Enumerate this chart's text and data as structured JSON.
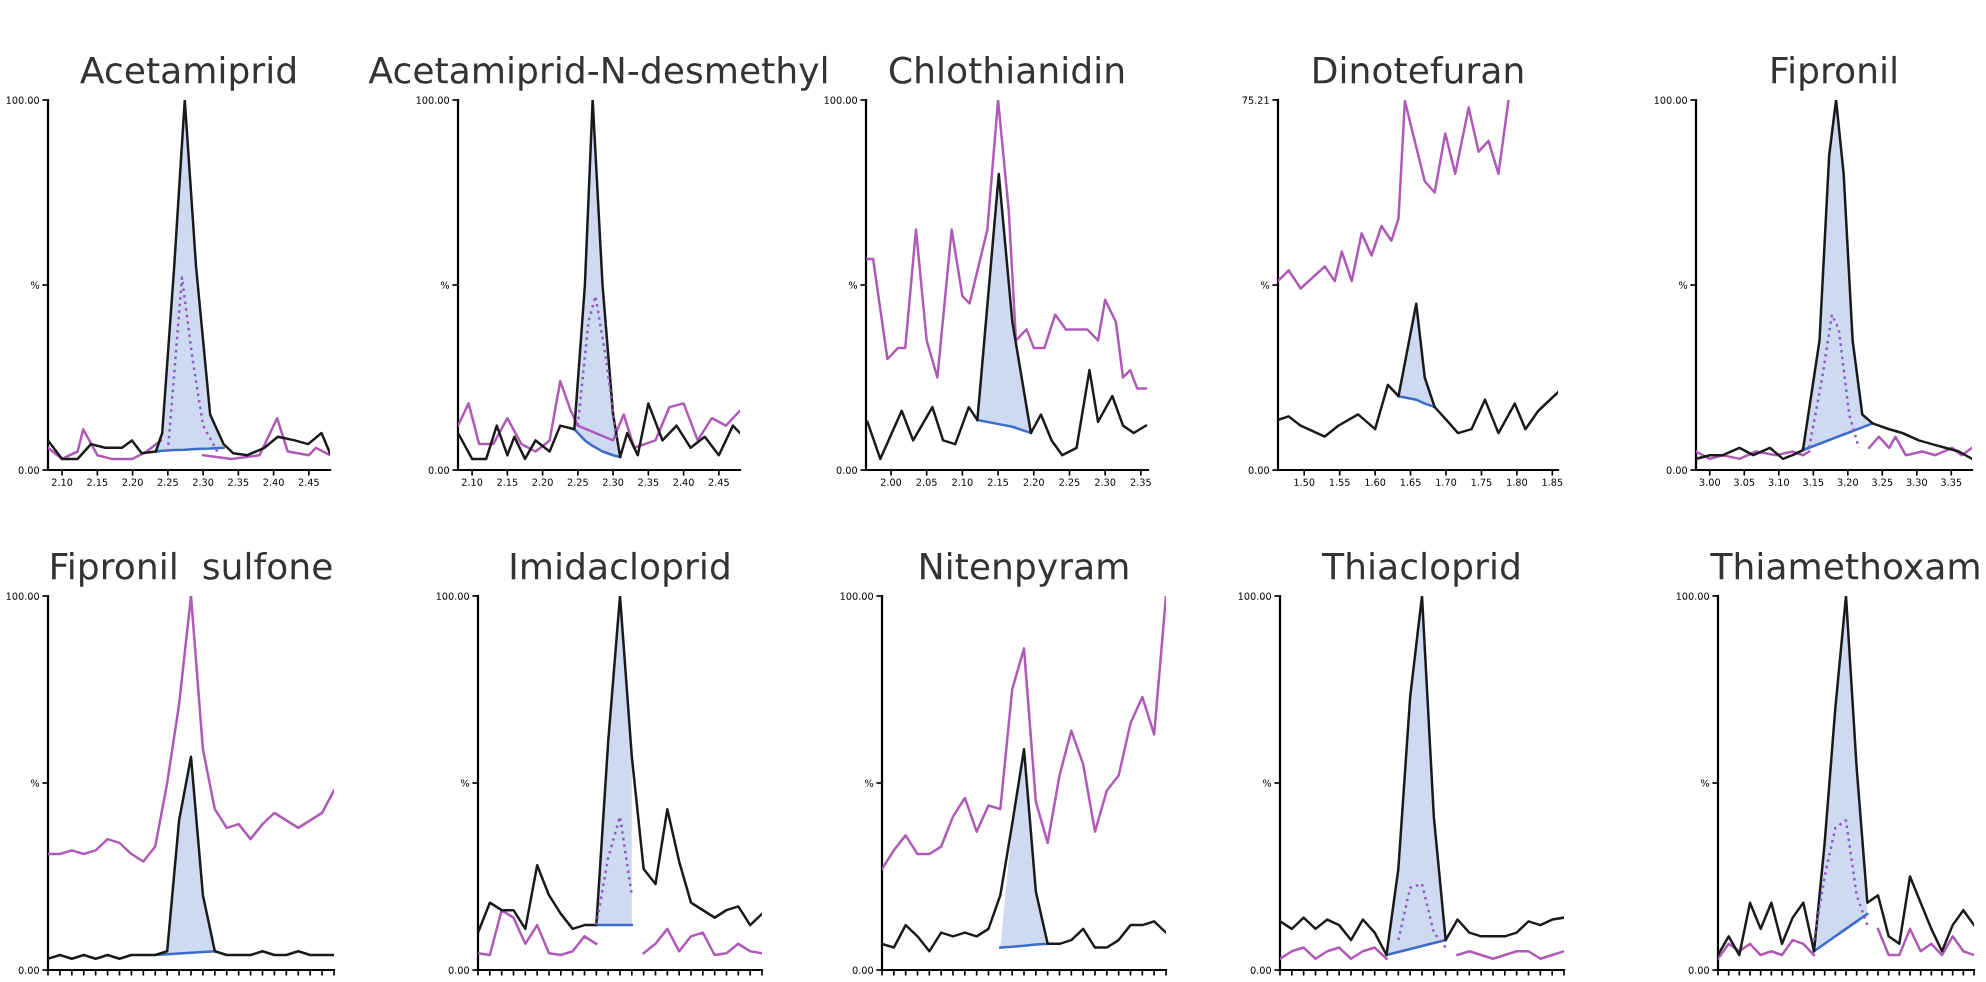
{
  "chart_data": [
    {
      "type": "line",
      "title": "Acetamiprid",
      "xlim": [
        2.08,
        2.48
      ],
      "xticks": [
        {
          "value": 2.1,
          "label": "2.10"
        },
        {
          "value": 2.15,
          "label": "2.15"
        },
        {
          "value": 2.2,
          "label": "2.20"
        },
        {
          "value": 2.25,
          "label": "2.25"
        },
        {
          "value": 2.3,
          "label": "2.30"
        },
        {
          "value": 2.35,
          "label": "2.35"
        },
        {
          "value": 2.4,
          "label": "2.40"
        },
        {
          "value": 2.45,
          "label": "2.45"
        }
      ],
      "ylim": [
        0,
        100
      ],
      "yticks": [
        {
          "value": 0,
          "label": "0.00"
        },
        {
          "value": 50,
          "label": "%"
        },
        {
          "value": 100,
          "label": "100.00"
        }
      ],
      "series": [
        {
          "color": "#3a6cc8",
          "x": [
            2.233,
            2.242,
            2.259,
            2.274,
            2.29,
            2.31,
            2.329
          ],
          "upper": [
            5,
            10,
            55,
            100,
            55,
            15,
            6
          ],
          "values": [
            5,
            5.2,
            5.4,
            5.5,
            5.7,
            5.8,
            6
          ],
          "lower": [
            5,
            5.2,
            5.4,
            5.5,
            5.7,
            5.8,
            6
          ]
        },
        {
          "color": "#b05ab8",
          "x": [
            2.08,
            2.1,
            2.122,
            2.13,
            2.15,
            2.17,
            2.2,
            2.22,
            2.24,
            2.25,
            2.3,
            2.34,
            2.38,
            2.405,
            2.42,
            2.45,
            2.46,
            2.48
          ],
          "values": [
            6,
            3,
            5,
            11,
            4,
            3,
            3,
            5,
            8,
            null,
            4,
            3,
            4,
            14,
            5,
            4,
            6,
            4
          ]
        },
        {
          "color": "#1a1a1a",
          "x": [
            2.08,
            2.1,
            2.122,
            2.141,
            2.161,
            2.185,
            2.199,
            2.213,
            2.233,
            2.242,
            2.259,
            2.274,
            2.29,
            2.31,
            2.329,
            2.343,
            2.363,
            2.387,
            2.406,
            2.43,
            2.449,
            2.468,
            2.48
          ],
          "values": [
            8,
            3,
            3,
            7,
            6,
            6,
            8,
            4.5,
            5,
            10,
            55,
            100,
            55,
            15,
            7,
            4.5,
            4,
            6,
            9,
            8,
            7,
            10,
            4.5
          ]
        },
        {
          "color": "#8e5cc0",
          "line_style": "dotted",
          "x": [
            2.25,
            2.265,
            2.27,
            2.285,
            2.3,
            2.32
          ],
          "values": [
            5,
            40,
            52,
            30,
            12,
            5
          ]
        }
      ]
    },
    {
      "type": "line",
      "title": "Acetamiprid-N-desmethyl",
      "xlim": [
        2.08,
        2.48
      ],
      "xticks": [
        {
          "value": 2.1,
          "label": "2.10"
        },
        {
          "value": 2.15,
          "label": "2.15"
        },
        {
          "value": 2.2,
          "label": "2.20"
        },
        {
          "value": 2.25,
          "label": "2.25"
        },
        {
          "value": 2.3,
          "label": "2.30"
        },
        {
          "value": 2.35,
          "label": "2.35"
        },
        {
          "value": 2.4,
          "label": "2.40"
        },
        {
          "value": 2.45,
          "label": "2.45"
        }
      ],
      "ylim": [
        0,
        100
      ],
      "yticks": [
        {
          "value": 0,
          "label": "0.00"
        },
        {
          "value": 50,
          "label": "%"
        },
        {
          "value": 100,
          "label": "100.00"
        }
      ],
      "series": [
        {
          "color": "#3a6cc8",
          "x": [
            2.245,
            2.26,
            2.271,
            2.285,
            2.3,
            2.31
          ],
          "upper": [
            11,
            50,
            100,
            50,
            15,
            3.5
          ],
          "values": [
            11,
            8,
            6.5,
            5,
            4,
            3.5
          ],
          "lower": [
            11,
            8,
            6.5,
            5,
            4,
            3.5
          ]
        },
        {
          "color": "#b05ab8",
          "x": [
            2.08,
            2.095,
            2.11,
            2.13,
            2.15,
            2.17,
            2.19,
            2.21,
            2.225,
            2.24,
            2.25,
            2.3,
            2.315,
            2.33,
            2.36,
            2.38,
            2.4,
            2.42,
            2.44,
            2.46,
            2.48
          ],
          "values": [
            12,
            18,
            7,
            7,
            14,
            7,
            5,
            8,
            24,
            16,
            12,
            8,
            15,
            6,
            8,
            17,
            18,
            8,
            14,
            12,
            16
          ]
        },
        {
          "color": "#1a1a1a",
          "x": [
            2.08,
            2.1,
            2.12,
            2.135,
            2.15,
            2.16,
            2.175,
            2.19,
            2.21,
            2.225,
            2.245,
            2.26,
            2.271,
            2.285,
            2.3,
            2.31,
            2.32,
            2.335,
            2.35,
            2.37,
            2.39,
            2.41,
            2.43,
            2.45,
            2.47,
            2.48
          ],
          "values": [
            10,
            3,
            3,
            12,
            4,
            9,
            3,
            8,
            5,
            12,
            11,
            50,
            100,
            50,
            15,
            3.5,
            10,
            4,
            18,
            8,
            12,
            6,
            9,
            4,
            12,
            10
          ]
        },
        {
          "color": "#8e5cc0",
          "line_style": "dotted",
          "x": [
            2.25,
            2.265,
            2.275,
            2.29,
            2.305
          ],
          "values": [
            12,
            40,
            47,
            30,
            8
          ]
        }
      ]
    },
    {
      "type": "line",
      "title": "Chlothianidin",
      "xlim": [
        1.965,
        2.36
      ],
      "xticks": [
        {
          "value": 2.0,
          "label": "2.00"
        },
        {
          "value": 2.05,
          "label": "2.05"
        },
        {
          "value": 2.1,
          "label": "2.10"
        },
        {
          "value": 2.15,
          "label": "2.15"
        },
        {
          "value": 2.2,
          "label": "2.20"
        },
        {
          "value": 2.25,
          "label": "2.25"
        },
        {
          "value": 2.3,
          "label": "2.30"
        },
        {
          "value": 2.35,
          "label": "2.35"
        }
      ],
      "ylim": [
        0,
        100
      ],
      "yticks": [
        {
          "value": 0,
          "label": "0.00"
        },
        {
          "value": 50,
          "label": "%"
        },
        {
          "value": 100,
          "label": "100.00"
        }
      ],
      "series": [
        {
          "color": "#3a6cc8",
          "x": [
            2.121,
            2.151,
            2.17,
            2.196
          ],
          "upper": [
            13.5,
            80,
            40,
            10
          ],
          "values": [
            13.5,
            12.4,
            11.7,
            10
          ],
          "lower": [
            13.5,
            12.4,
            11.7,
            10
          ]
        },
        {
          "color": "#b05ab8",
          "x": [
            1.967,
            1.975,
            1.995,
            2.01,
            2.02,
            2.035,
            2.05,
            2.065,
            2.085,
            2.1,
            2.11,
            2.135,
            2.15,
            2.165,
            2.175,
            2.19,
            2.2,
            2.215,
            2.23,
            2.245,
            2.26,
            2.275,
            2.29,
            2.3,
            2.315,
            2.325,
            2.335,
            2.345,
            2.357
          ],
          "values": [
            57,
            57,
            30,
            33,
            33,
            65,
            35,
            25,
            65,
            47,
            45,
            65,
            100,
            70,
            35,
            38,
            33,
            33,
            42,
            38,
            38,
            38,
            35,
            46,
            40,
            25,
            27,
            22,
            22
          ]
        },
        {
          "color": "#1a1a1a",
          "x": [
            1.967,
            1.985,
            2.015,
            2.031,
            2.058,
            2.073,
            2.09,
            2.109,
            2.121,
            2.151,
            2.17,
            2.196,
            2.21,
            2.225,
            2.24,
            2.26,
            2.278,
            2.29,
            2.31,
            2.325,
            2.34,
            2.357
          ],
          "values": [
            13,
            3,
            16,
            8,
            17,
            8,
            7,
            17,
            13.5,
            80,
            40,
            10,
            15,
            8,
            4,
            6,
            27,
            13,
            20,
            12,
            10,
            12
          ]
        }
      ]
    },
    {
      "type": "line",
      "title": "Dinotefuran",
      "xlim": [
        1.463,
        1.858
      ],
      "xticks": [
        {
          "value": 1.5,
          "label": "1.50"
        },
        {
          "value": 1.55,
          "label": "1.55"
        },
        {
          "value": 1.6,
          "label": "1.60"
        },
        {
          "value": 1.65,
          "label": "1.65"
        },
        {
          "value": 1.7,
          "label": "1.70"
        },
        {
          "value": 1.75,
          "label": "1.75"
        },
        {
          "value": 1.8,
          "label": "1.80"
        },
        {
          "value": 1.85,
          "label": "1.85"
        }
      ],
      "ylim": [
        0,
        75.21
      ],
      "yticks": [
        {
          "value": 0,
          "label": "0.00"
        },
        {
          "value": 37.6,
          "label": "%"
        },
        {
          "value": 75.21,
          "label": "75.21"
        }
      ],
      "series": [
        {
          "color": "#3a6cc8",
          "x": [
            1.633,
            1.658,
            1.67,
            1.684
          ],
          "upper": [
            15,
            33.8,
            18.8,
            12.8
          ],
          "values": [
            15,
            14.3,
            13.5,
            12.8
          ],
          "lower": [
            15,
            14.3,
            13.5,
            12.8
          ]
        },
        {
          "color": "#b05ab8",
          "x": [
            1.463,
            1.478,
            1.495,
            1.529,
            1.543,
            1.553,
            1.567,
            1.581,
            1.595,
            1.609,
            1.623,
            1.633,
            1.642,
            1.67,
            1.684,
            1.699,
            1.713,
            1.732,
            1.746,
            1.76,
            1.774,
            1.788
          ],
          "values": [
            38.4,
            40.6,
            36.9,
            41.4,
            38.4,
            44.4,
            38.4,
            48.1,
            43.6,
            49.6,
            46.6,
            51.1,
            75,
            58.7,
            56.4,
            68.4,
            60.2,
            73.7,
            64.7,
            66.9,
            60.2,
            75
          ]
        },
        {
          "color": "#1a1a1a",
          "x": [
            1.463,
            1.478,
            1.495,
            1.529,
            1.548,
            1.576,
            1.6,
            1.618,
            1.633,
            1.658,
            1.67,
            1.684,
            1.703,
            1.717,
            1.736,
            1.755,
            1.774,
            1.797,
            1.812,
            1.83,
            1.858
          ],
          "values": [
            10.2,
            10.9,
            9,
            6.8,
            9,
            11.3,
            8.3,
            17.3,
            15,
            33.8,
            18.8,
            12.8,
            9.8,
            7.5,
            8.3,
            14.3,
            7.5,
            13.5,
            8.3,
            12,
            15.8
          ]
        }
      ]
    },
    {
      "type": "line",
      "title": "Fipronil",
      "xlim": [
        2.98,
        3.38
      ],
      "xticks": [
        {
          "value": 3.0,
          "label": "3.00"
        },
        {
          "value": 3.05,
          "label": "3.05"
        },
        {
          "value": 3.1,
          "label": "3.10"
        },
        {
          "value": 3.15,
          "label": "3.15"
        },
        {
          "value": 3.2,
          "label": "3.20"
        },
        {
          "value": 3.25,
          "label": "3.25"
        },
        {
          "value": 3.3,
          "label": "3.30"
        },
        {
          "value": 3.35,
          "label": "3.35"
        }
      ],
      "ylim": [
        0,
        100
      ],
      "yticks": [
        {
          "value": 0,
          "label": "0.00"
        },
        {
          "value": 50,
          "label": "%"
        },
        {
          "value": 100,
          "label": "100.00"
        }
      ],
      "series": [
        {
          "color": "#3a6cc8",
          "x": [
            3.135,
            3.159,
            3.173,
            3.183,
            3.194,
            3.207,
            3.221,
            3.236
          ],
          "upper": [
            5.4,
            35,
            85,
            100,
            80,
            35,
            15,
            12.6
          ],
          "values": [
            5.4,
            7.1,
            8.1,
            8.8,
            9.6,
            10.5,
            11.5,
            12.6
          ],
          "lower": [
            5.4,
            7.1,
            8.1,
            8.8,
            9.6,
            10.5,
            11.5,
            12.6
          ]
        },
        {
          "color": "#b05ab8",
          "x": [
            2.98,
            3.0,
            3.019,
            3.043,
            3.067,
            3.096,
            3.12,
            3.135,
            3.144,
            3.19,
            3.231,
            3.245,
            3.26,
            3.269,
            3.284,
            3.308,
            3.327,
            3.351,
            3.365,
            3.38
          ],
          "values": [
            5,
            3,
            4,
            3,
            5,
            4,
            5,
            4,
            5,
            null,
            6,
            9,
            6,
            9,
            4,
            5,
            4,
            6,
            4,
            6
          ]
        },
        {
          "color": "#1a1a1a",
          "x": [
            2.98,
            3.0,
            3.019,
            3.043,
            3.063,
            3.087,
            3.106,
            3.12,
            3.135,
            3.159,
            3.173,
            3.183,
            3.194,
            3.207,
            3.221,
            3.236,
            3.26,
            3.279,
            3.303,
            3.322,
            3.341,
            3.361,
            3.38
          ],
          "values": [
            3,
            4,
            4,
            6,
            4,
            6,
            3,
            4,
            5.4,
            35,
            85,
            100,
            80,
            35,
            15,
            12.6,
            11,
            10,
            8,
            7,
            6,
            5,
            3
          ]
        },
        {
          "color": "#8e5cc0",
          "line_style": "dotted",
          "x": [
            3.144,
            3.163,
            3.177,
            3.187,
            3.202,
            3.216
          ],
          "values": [
            6,
            25,
            42,
            38,
            15,
            6
          ]
        }
      ]
    },
    {
      "type": "line",
      "title": "Fipronil  sulfone",
      "tick_labels": "y",
      "categories": [
        null,
        null,
        null,
        null,
        null,
        null,
        null,
        null,
        null,
        null,
        null,
        null,
        null,
        null,
        null,
        null,
        null,
        null,
        null,
        null,
        null,
        null,
        null,
        null,
        null
      ],
      "ylim": [
        0,
        100
      ],
      "yticks": [
        {
          "value": 0,
          "label": "0.00"
        },
        {
          "value": 50,
          "label": "%"
        },
        {
          "value": 100,
          "label": "100.00"
        }
      ],
      "series": [
        {
          "color": "#3a6cc8",
          "upper": [
            null,
            null,
            null,
            null,
            null,
            null,
            null,
            null,
            null,
            4,
            5,
            40,
            57,
            20,
            5,
            null,
            null,
            null,
            null,
            null,
            null,
            null,
            null,
            null,
            null
          ],
          "values": [
            null,
            null,
            null,
            null,
            null,
            null,
            null,
            null,
            null,
            4,
            4.2,
            4.4,
            4.6,
            4.8,
            5,
            null,
            null,
            null,
            null,
            null,
            null,
            null,
            null,
            null,
            null
          ],
          "lower": [
            null,
            null,
            null,
            null,
            null,
            null,
            null,
            null,
            null,
            4,
            4.2,
            4.4,
            4.6,
            4.8,
            5,
            null,
            null,
            null,
            null,
            null,
            null,
            null,
            null,
            null,
            null
          ]
        },
        {
          "color": "#b05ab8",
          "values": [
            31,
            31,
            32,
            31,
            32,
            35,
            34,
            31,
            29,
            33,
            50,
            71,
            100,
            59,
            43,
            38,
            39,
            35,
            39,
            42,
            40,
            38,
            40,
            42,
            48
          ]
        },
        {
          "color": "#1a1a1a",
          "values": [
            3,
            4,
            3,
            4,
            3,
            4,
            3,
            4,
            4,
            4,
            5,
            40,
            57,
            20,
            5,
            4,
            4,
            4,
            5,
            4,
            4,
            5,
            4,
            4,
            4
          ]
        }
      ]
    },
    {
      "type": "line",
      "title": "Imidacloprid",
      "tick_labels": "y",
      "categories": [
        null,
        null,
        null,
        null,
        null,
        null,
        null,
        null,
        null,
        null,
        null,
        null,
        null,
        null,
        null,
        null,
        null,
        null,
        null,
        null,
        null,
        null,
        null,
        null,
        null
      ],
      "ylim": [
        0,
        100
      ],
      "yticks": [
        {
          "value": 0,
          "label": "0.00"
        },
        {
          "value": 50,
          "label": "%"
        },
        {
          "value": 100,
          "label": "100.00"
        }
      ],
      "series": [
        {
          "color": "#3a6cc8",
          "upper": [
            null,
            null,
            null,
            null,
            null,
            null,
            null,
            null,
            null,
            null,
            12,
            61,
            100,
            57,
            null,
            null,
            null,
            null,
            null,
            null,
            null,
            null,
            null,
            null,
            null
          ],
          "values": [
            null,
            null,
            null,
            null,
            null,
            null,
            null,
            null,
            null,
            null,
            12,
            12,
            12,
            12,
            null,
            null,
            null,
            null,
            null,
            null,
            null,
            null,
            null,
            null,
            null
          ],
          "lower": [
            null,
            null,
            null,
            null,
            null,
            null,
            null,
            null,
            null,
            null,
            12,
            12,
            12,
            12,
            null,
            null,
            null,
            null,
            null,
            null,
            null,
            null,
            null,
            null,
            null
          ]
        },
        {
          "color": "#b05ab8",
          "values": [
            4.5,
            4,
            16,
            14,
            7,
            12,
            4.5,
            4,
            5,
            9,
            7,
            null,
            null,
            null,
            4.5,
            7,
            11,
            5,
            9,
            10,
            4,
            4.5,
            7,
            5,
            4.5
          ]
        },
        {
          "color": "#1a1a1a",
          "values": [
            10,
            18,
            16,
            16,
            11,
            28,
            20,
            15,
            11,
            12,
            12,
            61,
            100,
            57,
            27,
            23,
            43,
            29,
            18,
            16,
            14,
            16,
            17,
            12,
            15
          ]
        },
        {
          "color": "#8e5cc0",
          "line_style": "dotted",
          "values": [
            null,
            null,
            null,
            null,
            null,
            null,
            null,
            null,
            null,
            null,
            12,
            30,
            41,
            20,
            null,
            null,
            null,
            null,
            null,
            null,
            null,
            null,
            null,
            null,
            null
          ]
        }
      ]
    },
    {
      "type": "line",
      "title": "Nitenpyram",
      "tick_labels": "y",
      "categories": [
        null,
        null,
        null,
        null,
        null,
        null,
        null,
        null,
        null,
        null,
        null,
        null,
        null,
        null,
        null,
        null,
        null,
        null,
        null,
        null,
        null,
        null,
        null,
        null,
        null
      ],
      "ylim": [
        0,
        100
      ],
      "yticks": [
        {
          "value": 0,
          "label": "0.00"
        },
        {
          "value": 50,
          "label": "%"
        },
        {
          "value": 100,
          "label": "100.00"
        }
      ],
      "series": [
        {
          "color": "#3a6cc8",
          "upper": [
            null,
            null,
            null,
            null,
            null,
            null,
            null,
            null,
            null,
            null,
            6,
            39,
            59,
            21,
            7,
            null,
            null,
            null,
            null,
            null,
            null,
            null,
            null,
            null,
            null
          ],
          "values": [
            null,
            null,
            null,
            null,
            null,
            null,
            null,
            null,
            null,
            null,
            6,
            6.2,
            6.5,
            6.8,
            7,
            null,
            null,
            null,
            null,
            null,
            null,
            null,
            null,
            null,
            null
          ],
          "lower": [
            null,
            null,
            null,
            null,
            null,
            null,
            null,
            null,
            null,
            null,
            6,
            6.2,
            6.5,
            6.8,
            7,
            null,
            null,
            null,
            null,
            null,
            null,
            null,
            null,
            null,
            null
          ]
        },
        {
          "color": "#b05ab8",
          "values": [
            27,
            32,
            36,
            31,
            31,
            33,
            41,
            46,
            37,
            44,
            43,
            75,
            86,
            45,
            34,
            52,
            64,
            55,
            37,
            48,
            52,
            66,
            73,
            63,
            100
          ]
        },
        {
          "color": "#1a1a1a",
          "values": [
            7,
            6,
            12,
            9,
            5,
            10,
            9,
            10,
            9,
            11,
            20,
            39,
            59,
            21,
            7,
            7,
            8,
            11,
            6,
            6,
            8,
            12,
            12,
            13,
            10
          ]
        }
      ]
    },
    {
      "type": "line",
      "title": "Thiacloprid",
      "tick_labels": "y",
      "categories": [
        null,
        null,
        null,
        null,
        null,
        null,
        null,
        null,
        null,
        null,
        null,
        null,
        null,
        null,
        null,
        null,
        null,
        null,
        null,
        null,
        null,
        null,
        null,
        null,
        null
      ],
      "ylim": [
        0,
        100
      ],
      "yticks": [
        {
          "value": 0,
          "label": "0.00"
        },
        {
          "value": 50,
          "label": "%"
        },
        {
          "value": 100,
          "label": "100.00"
        }
      ],
      "series": [
        {
          "color": "#3a6cc8",
          "upper": [
            null,
            null,
            null,
            null,
            null,
            null,
            null,
            null,
            null,
            4,
            27,
            73,
            100,
            41,
            8,
            null,
            null,
            null,
            null,
            null,
            null,
            null,
            null,
            null,
            null
          ],
          "values": [
            null,
            null,
            null,
            null,
            null,
            null,
            null,
            null,
            null,
            4,
            4.8,
            5.6,
            6.4,
            7.2,
            8,
            null,
            null,
            null,
            null,
            null,
            null,
            null,
            null,
            null,
            null
          ],
          "lower": [
            null,
            null,
            null,
            null,
            null,
            null,
            null,
            null,
            null,
            4,
            4.8,
            5.6,
            6.4,
            7.2,
            8,
            null,
            null,
            null,
            null,
            null,
            null,
            null,
            null,
            null,
            null
          ]
        },
        {
          "color": "#b05ab8",
          "values": [
            3,
            5,
            6,
            3,
            5,
            6,
            3,
            5,
            6,
            3,
            null,
            null,
            null,
            null,
            null,
            4,
            5,
            4,
            3,
            4,
            5,
            5,
            3,
            4,
            5
          ]
        },
        {
          "color": "#1a1a1a",
          "values": [
            13,
            11,
            14,
            11,
            13.5,
            12,
            8,
            13.5,
            10,
            4,
            27,
            73,
            100,
            41,
            8,
            13.5,
            10,
            9,
            9,
            9,
            10,
            13,
            12,
            13.5,
            14
          ]
        },
        {
          "color": "#8e5cc0",
          "line_style": "dotted",
          "values": [
            null,
            null,
            null,
            null,
            null,
            null,
            null,
            null,
            null,
            null,
            8,
            22,
            23,
            10,
            6,
            null,
            null,
            null,
            null,
            null,
            null,
            null,
            null,
            null,
            null
          ]
        }
      ]
    },
    {
      "type": "line",
      "title": "Thiamethoxam",
      "tick_labels": "y",
      "categories": [
        null,
        null,
        null,
        null,
        null,
        null,
        null,
        null,
        null,
        null,
        null,
        null,
        null,
        null,
        null,
        null,
        null,
        null,
        null,
        null,
        null,
        null,
        null,
        null,
        null
      ],
      "ylim": [
        0,
        100
      ],
      "yticks": [
        {
          "value": 0,
          "label": "0.00"
        },
        {
          "value": 50,
          "label": "%"
        },
        {
          "value": 100,
          "label": "100.00"
        }
      ],
      "series": [
        {
          "color": "#3a6cc8",
          "upper": [
            null,
            null,
            null,
            null,
            null,
            null,
            null,
            null,
            null,
            5,
            34,
            70,
            100,
            54,
            18,
            null,
            null,
            null,
            null,
            null,
            null,
            null,
            null,
            null,
            null
          ],
          "values": [
            null,
            null,
            null,
            null,
            null,
            null,
            null,
            null,
            null,
            5,
            7,
            9,
            11,
            13,
            15,
            null,
            null,
            null,
            null,
            null,
            null,
            null,
            null,
            null,
            null
          ],
          "lower": [
            null,
            null,
            null,
            null,
            null,
            null,
            null,
            null,
            null,
            5,
            7,
            9,
            11,
            13,
            15,
            null,
            null,
            null,
            null,
            null,
            null,
            null,
            null,
            null,
            null
          ]
        },
        {
          "color": "#b05ab8",
          "values": [
            3,
            7,
            5,
            7,
            4,
            5,
            4,
            8,
            7,
            4,
            null,
            null,
            null,
            null,
            null,
            11,
            4,
            4,
            11,
            5,
            7,
            4,
            9,
            5,
            4
          ]
        },
        {
          "color": "#1a1a1a",
          "values": [
            4,
            9,
            4,
            18,
            11,
            18,
            7,
            14,
            18,
            5,
            34,
            70,
            100,
            54,
            18,
            20,
            9,
            7,
            25,
            18,
            11,
            5,
            12,
            16,
            12
          ]
        },
        {
          "color": "#8e5cc0",
          "line_style": "dotted",
          "values": [
            null,
            null,
            null,
            null,
            null,
            null,
            null,
            null,
            null,
            8,
            25,
            38,
            40,
            20,
            12,
            null,
            null,
            null,
            null,
            null,
            null,
            null,
            null,
            null,
            null
          ]
        }
      ]
    }
  ]
}
